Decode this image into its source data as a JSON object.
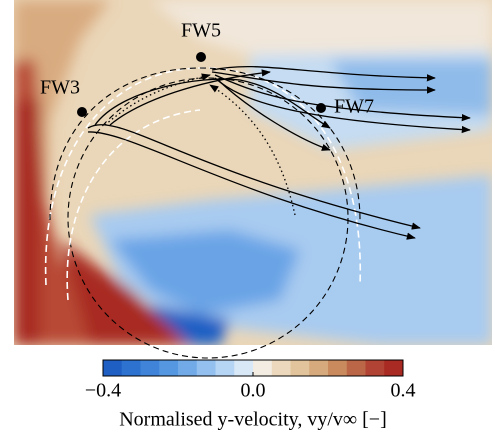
{
  "chart_data": {
    "type": "contour",
    "annotations": [
      "FW3",
      "FW5",
      "FW7"
    ],
    "colorbar": {
      "label": "Normalised y-velocity, vy/v∞ [−]",
      "lim": [
        -0.4,
        0.4
      ],
      "ticks": [
        {
          "value": -0.4,
          "label": "−0.4"
        },
        {
          "value": 0,
          "label": "0.0"
        },
        0.4
      ],
      "colors": [
        "#1f5fc4",
        "#2e72d0",
        "#3f84d9",
        "#5697e2",
        "#72aae8",
        "#93c0ef",
        "#b6d5f4",
        "#d8e8f7",
        "#f2ece3",
        "#ecd9bd",
        "#e2c49c",
        "#d6aa7c",
        "#c98a5e",
        "#bb6647",
        "#b04333",
        "#a82a23"
      ]
    }
  }
}
